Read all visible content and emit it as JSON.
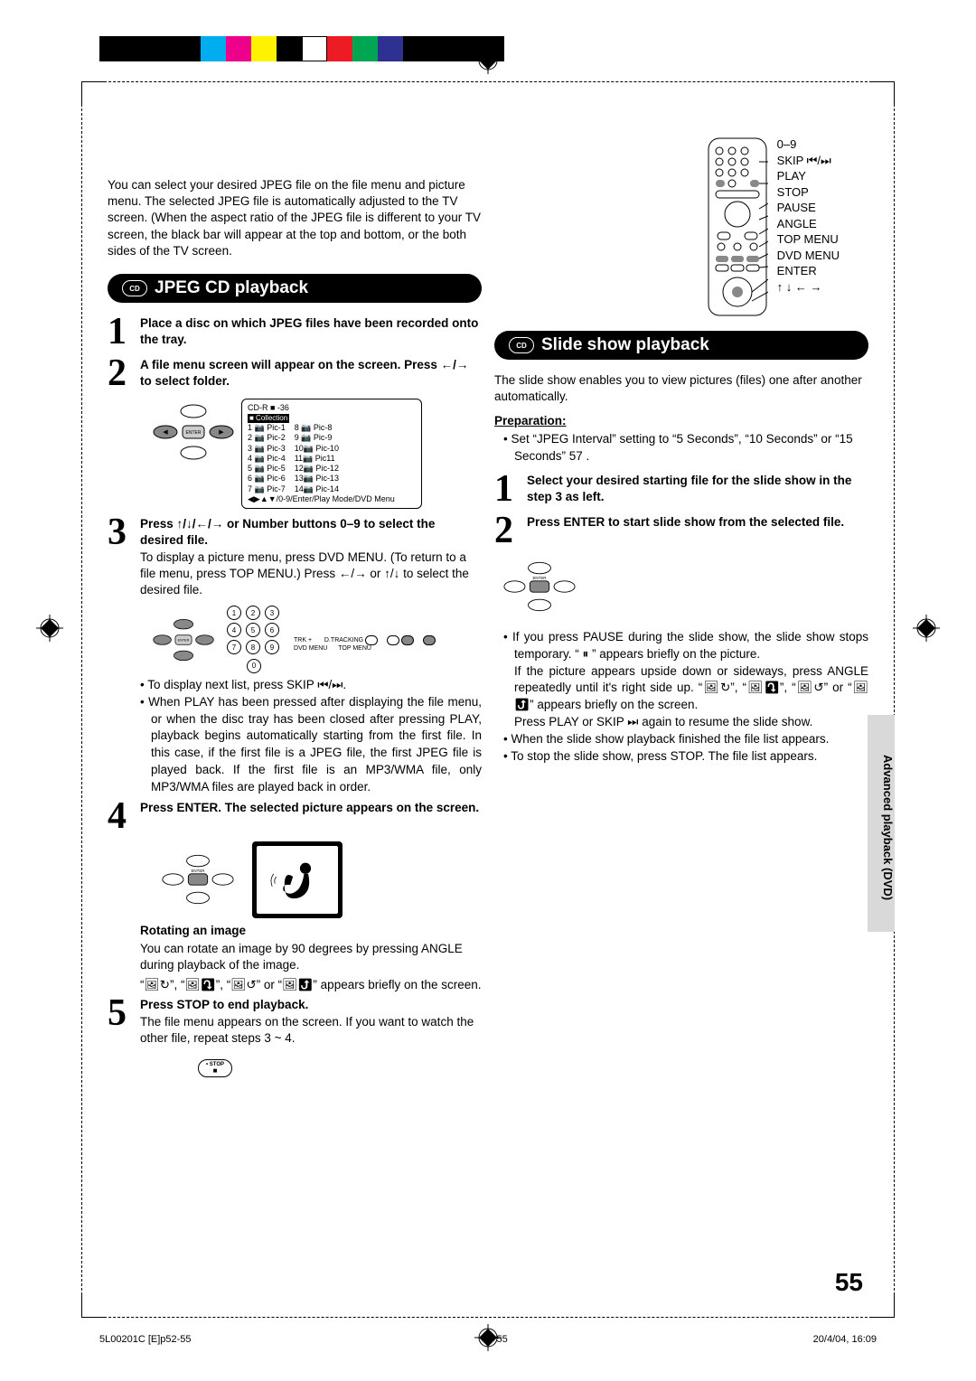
{
  "colorbar": [
    "#000000",
    "#000000",
    "#000000",
    "#000000",
    "#00aeef",
    "#ec008c",
    "#fff200",
    "#000000",
    "#ffffff",
    "#ed1c24",
    "#00a651",
    "#2e3192",
    "#000000",
    "#000000",
    "#000000",
    "#000000"
  ],
  "intro": "You can select your desired JPEG file on the file menu and picture menu. The selected JPEG file is automatically adjusted to the TV screen. (When the aspect ratio of the JPEG file is different to your TV screen, the black bar will appear at the top and bottom, or the both sides of the TV screen.",
  "remote_labels": [
    "0–9",
    "SKIP ⏮/⏭",
    "PLAY",
    "STOP",
    "PAUSE",
    "ANGLE",
    "TOP MENU",
    "DVD MENU",
    "ENTER",
    "↑ ↓ ← →"
  ],
  "left": {
    "title": "JPEG CD playback",
    "step1": "Place a disc on which JPEG files have been recorded onto the tray.",
    "step2": "A file menu screen will appear on the screen. Press ←/→ to select folder.",
    "filelist": {
      "hdr": "CD-R ■               -36",
      "coll": "■ Collection",
      "l": [
        "1 📷 Pic-1",
        "2 📷 Pic-2",
        "3 📷 Pic-3",
        "4 📷 Pic-4",
        "5 📷 Pic-5",
        "6 📷 Pic-6",
        "7 📷 Pic-7"
      ],
      "r": [
        "8 📷 Pic-8",
        "9 📷 Pic-9",
        "10📷 Pic-10",
        "11📷 Pic11",
        "12📷 Pic-12",
        "13📷 Pic-13",
        "14📷 Pic-14"
      ],
      "ftr": "◀▶▲▼/0-9/Enter/Play Mode/DVD Menu"
    },
    "step3_bold": "Press ↑/↓/←/→ or Number buttons 0–9 to select the desired file.",
    "step3_body": "To display a picture menu, press DVD MENU. (To return to a file menu, press TOP MENU.) Press ←/→ or ↑/↓ to select the desired file.",
    "buttons_labels": {
      "trk": "TRK +",
      "dtrk": "D.TRACKING",
      "dvd": "DVD MENU",
      "top": "TOP MENU"
    },
    "step3_bul1": "To display next list, press SKIP ⏮/⏭.",
    "step3_bul2": "When PLAY has been pressed after displaying the file menu, or when the disc tray has been closed after pressing PLAY, playback begins automatically starting from the first file. In this case, if the first file is a JPEG file, the first JPEG file is played back. If the first file is an MP3/WMA file, only MP3/WMA files are played back in order.",
    "step4": "Press ENTER. The selected picture appears on the screen.",
    "rot_h": "Rotating an image",
    "rot_b1": "You can rotate an image by 90 degrees by pressing ANGLE during playback of the image.",
    "rot_b2": "“🖼↻”, “🖼⤵”, “🖼↺” or “🖼⤴” appears briefly on the screen.",
    "step5_b": "Press STOP to end playback.",
    "step5_t": "The file menu appears on the screen. If you want to watch the other file, repeat steps 3 ~ 4.",
    "stop_btn": "• STOP\n■"
  },
  "right": {
    "title": "Slide show playback",
    "intro": "The slide show enables you to view pictures (files) one after another automatically.",
    "prep_h": "Preparation:",
    "prep_b": "Set “JPEG Interval” setting to “5 Seconds”, “10 Seconds” or “15 Seconds” 57 .",
    "step1": "Select your desired starting file for the slide show in the step 3 as left.",
    "step2": "Press ENTER to start slide show from the selected file.",
    "bul1": "If you press PAUSE during the slide show, the slide show stops temporary. “ ⏸ ” appears briefly on the picture.",
    "bul1b": "If the picture appears upside down or sideways, press ANGLE repeatedly until it's right side up. “🖼↻”, “🖼⤵”, “🖼↺” or “🖼⤴” appears briefly on the screen.",
    "bul1c": "Press PLAY or SKIP ⏭ again to resume the slide show.",
    "bul2": "When the slide show playback finished the file list appears.",
    "bul3": "To stop the slide show, press STOP. The file list appears."
  },
  "sidebar": "Advanced playback (DVD)",
  "pagenum": "55",
  "footer_l": "5L00201C [E]p52-55",
  "footer_c": "55",
  "footer_r": "20/4/04, 16:09"
}
